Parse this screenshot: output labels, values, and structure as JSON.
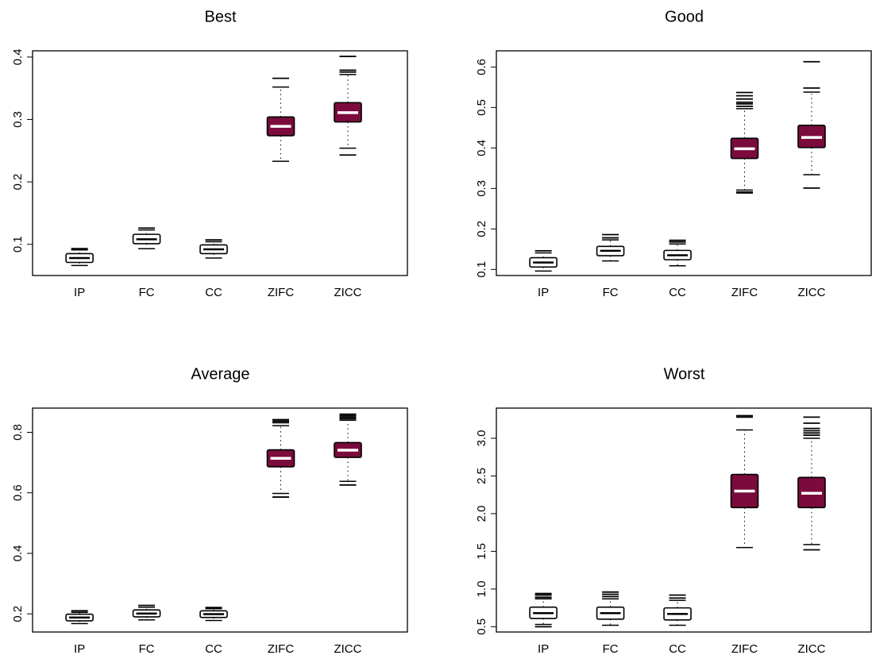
{
  "chart_data": [
    {
      "type": "boxplot",
      "title": "Best",
      "categories": [
        "IP",
        "FC",
        "CC",
        "ZIFC",
        "ZICC"
      ],
      "ylim": [
        0.05,
        0.41
      ],
      "yticks": [
        0.1,
        0.2,
        0.3,
        0.4
      ],
      "boxes": [
        {
          "q1": 0.071,
          "median": 0.078,
          "q3": 0.085,
          "whisker_low": 0.066,
          "whisker_high": 0.091,
          "outliers": [
            0.093
          ],
          "filled": false
        },
        {
          "q1": 0.101,
          "median": 0.108,
          "q3": 0.116,
          "whisker_low": 0.093,
          "whisker_high": 0.123,
          "outliers": [
            0.126
          ],
          "filled": false
        },
        {
          "q1": 0.085,
          "median": 0.092,
          "q3": 0.099,
          "whisker_low": 0.078,
          "whisker_high": 0.104,
          "outliers": [
            0.107
          ],
          "filled": false
        },
        {
          "q1": 0.274,
          "median": 0.289,
          "q3": 0.304,
          "whisker_low": 0.233,
          "whisker_high": 0.352,
          "outliers": [
            0.366
          ],
          "filled": true
        },
        {
          "q1": 0.296,
          "median": 0.311,
          "q3": 0.327,
          "whisker_low": 0.254,
          "whisker_high": 0.372,
          "outliers": [
            0.243,
            0.376,
            0.379,
            0.401
          ],
          "filled": true
        }
      ]
    },
    {
      "type": "boxplot",
      "title": "Good",
      "categories": [
        "IP",
        "FC",
        "CC",
        "ZIFC",
        "ZICC"
      ],
      "ylim": [
        0.085,
        0.64
      ],
      "yticks": [
        0.1,
        0.2,
        0.3,
        0.4,
        0.5,
        0.6
      ],
      "boxes": [
        {
          "q1": 0.106,
          "median": 0.117,
          "q3": 0.129,
          "whisker_low": 0.096,
          "whisker_high": 0.141,
          "outliers": [
            0.146
          ],
          "filled": false
        },
        {
          "q1": 0.134,
          "median": 0.146,
          "q3": 0.157,
          "whisker_low": 0.121,
          "whisker_high": 0.173,
          "outliers": [
            0.178,
            0.186
          ],
          "filled": false
        },
        {
          "q1": 0.124,
          "median": 0.135,
          "q3": 0.147,
          "whisker_low": 0.109,
          "whisker_high": 0.163,
          "outliers": [
            0.168,
            0.172
          ],
          "filled": false
        },
        {
          "q1": 0.374,
          "median": 0.398,
          "q3": 0.424,
          "whisker_low": 0.296,
          "whisker_high": 0.497,
          "outliers": [
            0.289,
            0.291,
            0.503,
            0.509,
            0.513,
            0.521,
            0.529,
            0.537
          ],
          "filled": true
        },
        {
          "q1": 0.401,
          "median": 0.426,
          "q3": 0.456,
          "whisker_low": 0.334,
          "whisker_high": 0.538,
          "outliers": [
            0.301,
            0.548,
            0.613
          ],
          "filled": true
        }
      ]
    },
    {
      "type": "boxplot",
      "title": "Average",
      "categories": [
        "IP",
        "FC",
        "CC",
        "ZIFC",
        "ZICC"
      ],
      "ylim": [
        0.14,
        0.88
      ],
      "yticks": [
        0.2,
        0.4,
        0.6,
        0.8
      ],
      "boxes": [
        {
          "q1": 0.177,
          "median": 0.188,
          "q3": 0.199,
          "whisker_low": 0.168,
          "whisker_high": 0.205,
          "outliers": [
            0.21
          ],
          "filled": false
        },
        {
          "q1": 0.19,
          "median": 0.201,
          "q3": 0.213,
          "whisker_low": 0.18,
          "whisker_high": 0.222,
          "outliers": [
            0.228
          ],
          "filled": false
        },
        {
          "q1": 0.188,
          "median": 0.199,
          "q3": 0.21,
          "whisker_low": 0.178,
          "whisker_high": 0.217,
          "outliers": [
            0.221
          ],
          "filled": false
        },
        {
          "q1": 0.686,
          "median": 0.714,
          "q3": 0.742,
          "whisker_low": 0.598,
          "whisker_high": 0.822,
          "outliers": [
            0.586,
            0.832,
            0.837,
            0.842
          ],
          "filled": true
        },
        {
          "q1": 0.717,
          "median": 0.741,
          "q3": 0.766,
          "whisker_low": 0.638,
          "whisker_high": 0.84,
          "outliers": [
            0.626,
            0.845,
            0.85,
            0.855,
            0.86
          ],
          "filled": true
        }
      ]
    },
    {
      "type": "boxplot",
      "title": "Worst",
      "categories": [
        "IP",
        "FC",
        "CC",
        "ZIFC",
        "ZICC"
      ],
      "ylim": [
        0.43,
        3.4
      ],
      "yticks": [
        0.5,
        1.0,
        1.5,
        2.0,
        2.5,
        3.0
      ],
      "ytick_labels": [
        "0.5",
        "1.0",
        "1.5",
        "2.0",
        "2.5",
        "3.0"
      ],
      "boxes": [
        {
          "q1": 0.61,
          "median": 0.68,
          "q3": 0.76,
          "whisker_low": 0.53,
          "whisker_high": 0.87,
          "outliers": [
            0.5,
            0.89,
            0.92,
            0.94
          ],
          "filled": false
        },
        {
          "q1": 0.6,
          "median": 0.68,
          "q3": 0.76,
          "whisker_low": 0.52,
          "whisker_high": 0.87,
          "outliers": [
            0.9,
            0.93,
            0.96
          ],
          "filled": false
        },
        {
          "q1": 0.59,
          "median": 0.67,
          "q3": 0.75,
          "whisker_low": 0.52,
          "whisker_high": 0.85,
          "outliers": [
            0.88,
            0.92
          ],
          "filled": false
        },
        {
          "q1": 2.08,
          "median": 2.3,
          "q3": 2.52,
          "whisker_low": 1.55,
          "whisker_high": 3.11,
          "outliers": [
            3.28,
            3.3
          ],
          "filled": true
        },
        {
          "q1": 2.08,
          "median": 2.27,
          "q3": 2.48,
          "whisker_low": 1.59,
          "whisker_high": 3.0,
          "outliers": [
            1.52,
            3.04,
            3.07,
            3.1,
            3.13,
            3.2,
            3.28
          ],
          "filled": true
        }
      ]
    }
  ],
  "colors": {
    "box_fill": "#7b0a3d",
    "median_on_fill": "#ffffff",
    "stroke": "#000000"
  }
}
